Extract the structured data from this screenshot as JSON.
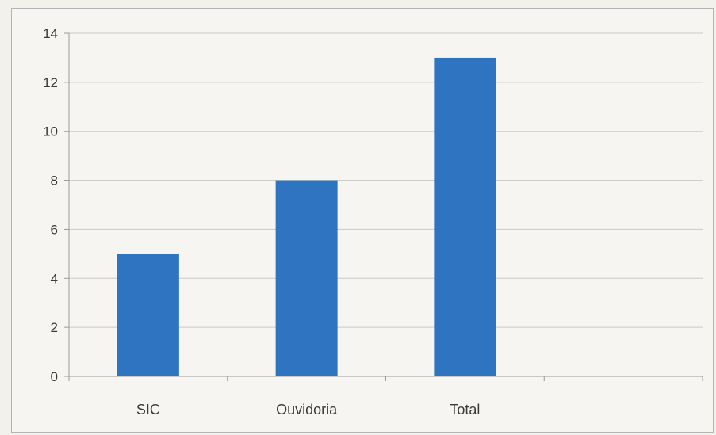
{
  "chart_data": {
    "type": "bar",
    "categories": [
      "SIC",
      "Ouvidoria",
      "Total"
    ],
    "slots": 4,
    "values": [
      5,
      8,
      13
    ],
    "title": "",
    "xlabel": "",
    "ylabel": "",
    "ylim": [
      0,
      14
    ],
    "yticks": [
      0,
      2,
      4,
      6,
      8,
      10,
      12,
      14
    ],
    "grid": true,
    "legend": "none",
    "colors": {
      "bar": "#2e74c0",
      "grid": "#c9c9c9",
      "axis": "#9a9a9a"
    }
  }
}
